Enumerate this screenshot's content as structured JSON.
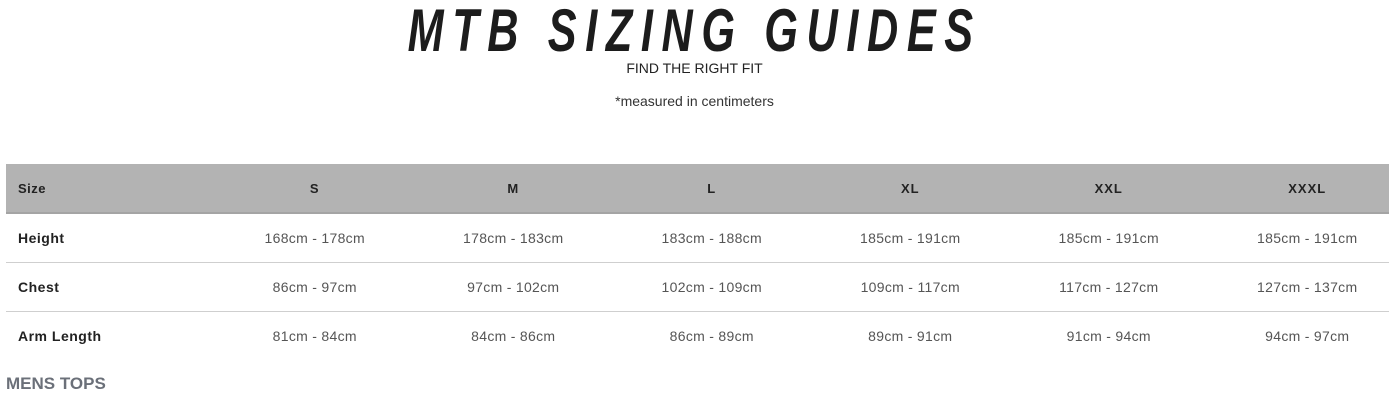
{
  "header": {
    "title": "MTB SIZING GUIDES",
    "subtitle": "FIND THE RIGHT FIT",
    "note": "*measured in centimeters"
  },
  "table": {
    "columns": [
      "Size",
      "S",
      "M",
      "L",
      "XL",
      "XXL",
      "XXXL"
    ],
    "rows": [
      {
        "label": "Height",
        "values": [
          "168cm - 178cm",
          "178cm - 183cm",
          "183cm - 188cm",
          "185cm - 191cm",
          "185cm - 191cm",
          "185cm - 191cm"
        ]
      },
      {
        "label": "Chest",
        "values": [
          "86cm - 97cm",
          "97cm - 102cm",
          "102cm - 109cm",
          "109cm - 117cm",
          "117cm - 127cm",
          "127cm - 137cm"
        ]
      },
      {
        "label": "Arm Length",
        "values": [
          "81cm - 84cm",
          "84cm - 86cm",
          "86cm - 89cm",
          "89cm - 91cm",
          "91cm - 94cm",
          "94cm - 97cm"
        ]
      }
    ]
  },
  "section_heading": "MENS TOPS",
  "colors": {
    "header_bg": "#b3b3b3",
    "section_heading": "#6b7079"
  }
}
